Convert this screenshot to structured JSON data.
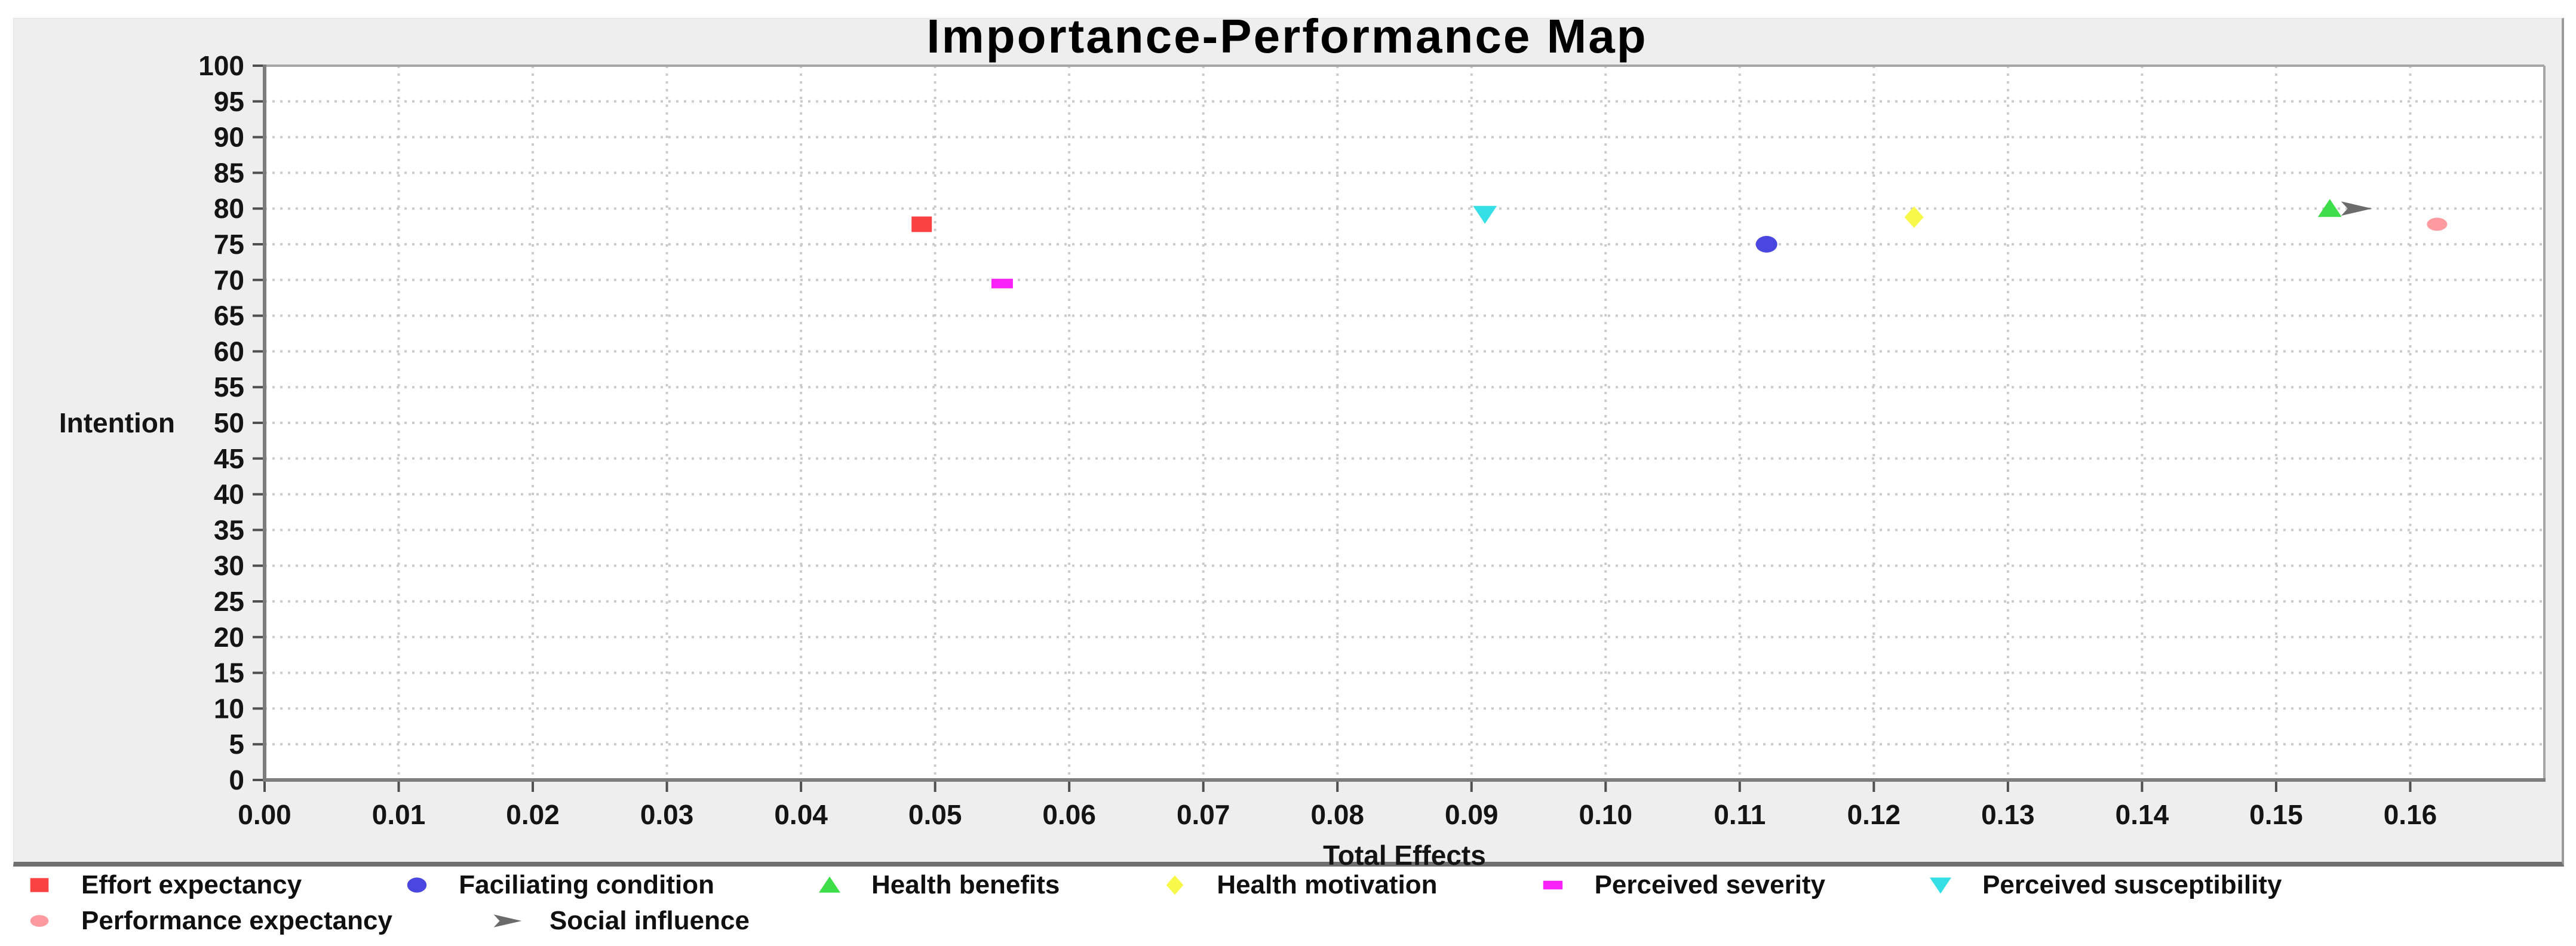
{
  "page": {
    "background": "#ffffff",
    "panel_background": "#eeeeee",
    "plot_background": "#ffffff",
    "grid_color": "#cbcbcb",
    "axis_dark_color": "#7d7d7d",
    "axis_light_color": "#a6a6a6",
    "tick_color": "#4f4f4f",
    "text_color": "#141414"
  },
  "chart_data": {
    "type": "scatter",
    "title": "Importance-Performance Map",
    "xlabel": "Total Effects",
    "ylabel": "Intention",
    "xlim": [
      0.0,
      0.17
    ],
    "ylim": [
      0,
      100
    ],
    "x_ticks": [
      0.0,
      0.01,
      0.02,
      0.03,
      0.04,
      0.05,
      0.06,
      0.07,
      0.08,
      0.09,
      0.1,
      0.11,
      0.12,
      0.13,
      0.14,
      0.15,
      0.16
    ],
    "y_ticks": [
      0,
      5,
      10,
      15,
      20,
      25,
      30,
      35,
      40,
      45,
      50,
      55,
      60,
      65,
      70,
      75,
      80,
      85,
      90,
      95,
      100
    ],
    "grid": "dotted",
    "legend_position": "bottom",
    "series": [
      {
        "name": "Effort expectancy",
        "marker": "square",
        "color": "#fa4243",
        "x": 0.049,
        "y": 77.8
      },
      {
        "name": "Faciliating condition",
        "marker": "circle",
        "color": "#4a46e0",
        "x": 0.112,
        "y": 75.0
      },
      {
        "name": "Health benefits",
        "marker": "triangle-up",
        "color": "#3ede4a",
        "x": 0.154,
        "y": 80.0
      },
      {
        "name": "Health motivation",
        "marker": "diamond",
        "color": "#f8f84a",
        "x": 0.123,
        "y": 78.8
      },
      {
        "name": "Perceived severity",
        "marker": "flat-square",
        "color": "#f923f9",
        "x": 0.055,
        "y": 69.5
      },
      {
        "name": "Perceived susceptibility",
        "marker": "triangle-down",
        "color": "#35dfe6",
        "x": 0.091,
        "y": 79.2
      },
      {
        "name": "Performance expectancy",
        "marker": "small-circle",
        "color": "#fd9aa0",
        "x": 0.162,
        "y": 77.8
      },
      {
        "name": "Social influence",
        "marker": "arrow-right",
        "color": "#6b6b6b",
        "x": 0.156,
        "y": 80.0
      }
    ],
    "legend_rows": [
      [
        0,
        1,
        2,
        3,
        4,
        5
      ],
      [
        6,
        7
      ]
    ]
  }
}
